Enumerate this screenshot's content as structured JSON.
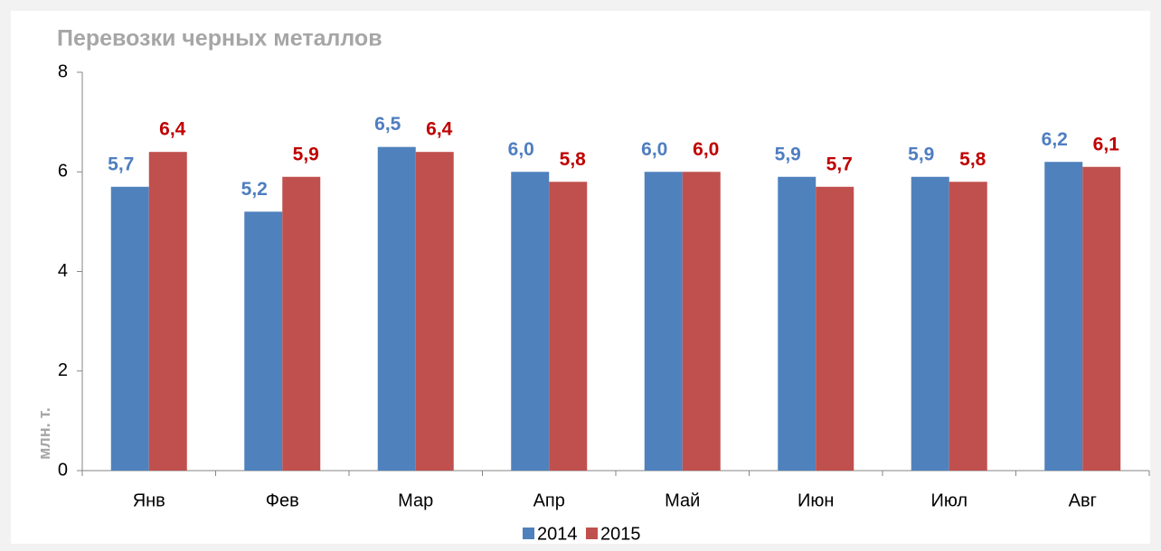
{
  "chart_data": {
    "type": "bar",
    "title": "Перевозки черных металлов",
    "ylabel": "млн. т.",
    "categories": [
      "Янв",
      "Фев",
      "Мар",
      "Апр",
      "Май",
      "Июн",
      "Июл",
      "Авг"
    ],
    "series": [
      {
        "name": "2014",
        "color": "#4f81bd",
        "label_color": "#4f7ec0",
        "values": [
          5.7,
          5.2,
          6.5,
          6.0,
          6.0,
          5.9,
          5.9,
          6.2
        ],
        "value_labels": [
          "5,7",
          "5,2",
          "6,5",
          "6,0",
          "6,0",
          "5,9",
          "5,9",
          "6,2"
        ]
      },
      {
        "name": "2015",
        "color": "#c0504d",
        "label_color": "#c00000",
        "values": [
          6.4,
          5.9,
          6.4,
          5.8,
          6.0,
          5.7,
          5.8,
          6.1
        ],
        "value_labels": [
          "6,4",
          "5,9",
          "6,4",
          "5,8",
          "6,0",
          "5,7",
          "5,8",
          "6,1"
        ]
      }
    ],
    "ylim": [
      0,
      8
    ],
    "yticks": [
      0,
      2,
      4,
      6,
      8
    ],
    "grid": false,
    "legend": "bottom"
  }
}
